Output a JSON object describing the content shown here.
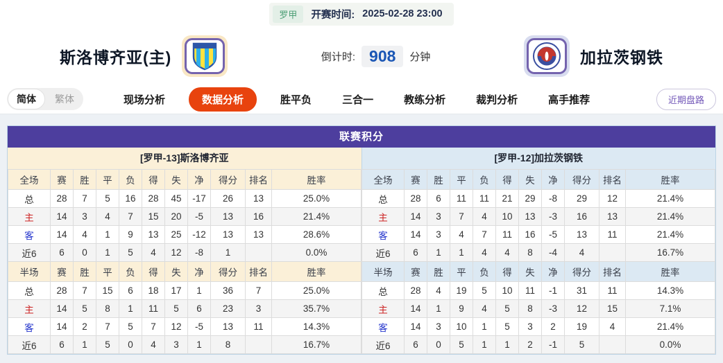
{
  "match_header": {
    "league_badge": "罗甲",
    "kickoff_label": "开赛时间:",
    "kickoff_time": "2025-02-28 23:00",
    "home_team": "斯洛博齐亚(主)",
    "away_team": "加拉茨钢铁",
    "countdown_label": "倒计时:",
    "countdown_value": "908",
    "countdown_unit": "分钟"
  },
  "nav": {
    "lang_simplified": "简体",
    "lang_traditional": "繁体",
    "tabs": [
      "现场分析",
      "数据分析",
      "胜平负",
      "三合一",
      "教练分析",
      "裁判分析",
      "高手推荐"
    ],
    "active_tab": "数据分析",
    "right_button": "近期盘路"
  },
  "section": {
    "title": "联赛积分",
    "left_subtitle": "[罗甲-13]斯洛博齐亚",
    "right_subtitle": "[罗甲-12]加拉茨钢铁"
  },
  "columns_full": [
    "全场",
    "赛",
    "胜",
    "平",
    "负",
    "得",
    "失",
    "净",
    "得分",
    "排名",
    "胜率"
  ],
  "columns_half": [
    "半场",
    "赛",
    "胜",
    "平",
    "负",
    "得",
    "失",
    "净",
    "得分",
    "排名",
    "胜率"
  ],
  "left_table": {
    "full": [
      [
        "总",
        "28",
        "7",
        "5",
        "16",
        "28",
        "45",
        "-17",
        "26",
        "13",
        "25.0%"
      ],
      [
        "主",
        "14",
        "3",
        "4",
        "7",
        "15",
        "20",
        "-5",
        "13",
        "16",
        "21.4%"
      ],
      [
        "客",
        "14",
        "4",
        "1",
        "9",
        "13",
        "25",
        "-12",
        "13",
        "13",
        "28.6%"
      ],
      [
        "近6",
        "6",
        "0",
        "1",
        "5",
        "4",
        "12",
        "-8",
        "1",
        "",
        "0.0%"
      ]
    ],
    "half": [
      [
        "总",
        "28",
        "7",
        "15",
        "6",
        "18",
        "17",
        "1",
        "36",
        "7",
        "25.0%"
      ],
      [
        "主",
        "14",
        "5",
        "8",
        "1",
        "11",
        "5",
        "6",
        "23",
        "3",
        "35.7%"
      ],
      [
        "客",
        "14",
        "2",
        "7",
        "5",
        "7",
        "12",
        "-5",
        "13",
        "11",
        "14.3%"
      ],
      [
        "近6",
        "6",
        "1",
        "5",
        "0",
        "4",
        "3",
        "1",
        "8",
        "",
        "16.7%"
      ]
    ]
  },
  "right_table": {
    "full": [
      [
        "总",
        "28",
        "6",
        "11",
        "11",
        "21",
        "29",
        "-8",
        "29",
        "12",
        "21.4%"
      ],
      [
        "主",
        "14",
        "3",
        "7",
        "4",
        "10",
        "13",
        "-3",
        "16",
        "13",
        "21.4%"
      ],
      [
        "客",
        "14",
        "3",
        "4",
        "7",
        "11",
        "16",
        "-5",
        "13",
        "11",
        "21.4%"
      ],
      [
        "近6",
        "6",
        "1",
        "1",
        "4",
        "4",
        "8",
        "-4",
        "4",
        "",
        "16.7%"
      ]
    ],
    "half": [
      [
        "总",
        "28",
        "4",
        "19",
        "5",
        "10",
        "11",
        "-1",
        "31",
        "11",
        "14.3%"
      ],
      [
        "主",
        "14",
        "1",
        "9",
        "4",
        "5",
        "8",
        "-3",
        "12",
        "15",
        "7.1%"
      ],
      [
        "客",
        "14",
        "3",
        "10",
        "1",
        "5",
        "3",
        "2",
        "19",
        "4",
        "21.4%"
      ],
      [
        "近6",
        "6",
        "0",
        "5",
        "1",
        "1",
        "2",
        "-1",
        "5",
        "",
        "0.0%"
      ]
    ]
  },
  "colors": {
    "accent_orange": "#E8430E",
    "panel_purple": "#4D3E9E",
    "home_header_cream": "#FBF0D8",
    "away_header_blue": "#DCE9F3",
    "countdown_blue": "#1A56B5",
    "league_green": "#4FA077",
    "link_purple": "#7257B8",
    "home_row_label_red": "#CC2222",
    "away_row_label_blue": "#2233CC",
    "panel_border_blue": "#BCD4E6"
  }
}
